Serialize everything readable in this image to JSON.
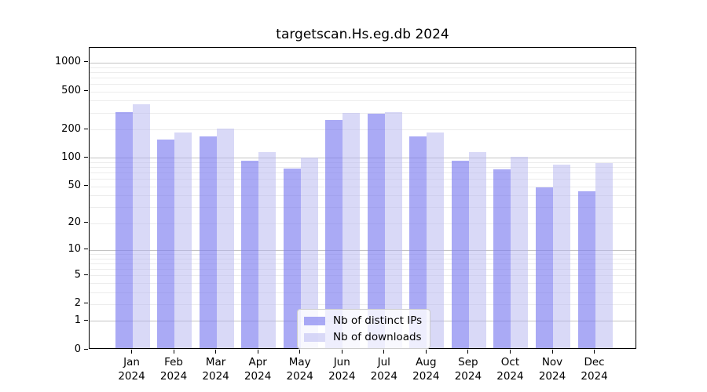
{
  "title": "targetscan.Hs.eg.db 2024",
  "chart_data": {
    "type": "bar",
    "title": "targetscan.Hs.eg.db 2024",
    "categories": [
      "Jan",
      "Feb",
      "Mar",
      "Apr",
      "May",
      "Jun",
      "Jul",
      "Aug",
      "Sep",
      "Oct",
      "Nov",
      "Dec"
    ],
    "category_year": "2024",
    "series": [
      {
        "name": "Nb of distinct IPs",
        "color": "rgba(125,125,240,0.65)",
        "values": [
          292,
          152,
          164,
          90,
          75,
          242,
          281,
          161,
          90,
          73,
          47,
          43
        ]
      },
      {
        "name": "Nb of downloads",
        "color": "rgba(180,180,240,0.5)",
        "values": [
          353,
          178,
          198,
          112,
          97,
          287,
          292,
          180,
          112,
          100,
          82,
          85
        ]
      }
    ],
    "xlabel": "",
    "ylabel": "",
    "y_axis": {
      "scale": "log1p",
      "tick_labels": [
        1000,
        500,
        200,
        100,
        50,
        20,
        10,
        5,
        2,
        1,
        0
      ],
      "major_gridlines": [
        1,
        10,
        100,
        1000
      ],
      "top_value_at_plot_top": 1430
    },
    "grid": true,
    "legend_position": "inside-bottom-center"
  }
}
